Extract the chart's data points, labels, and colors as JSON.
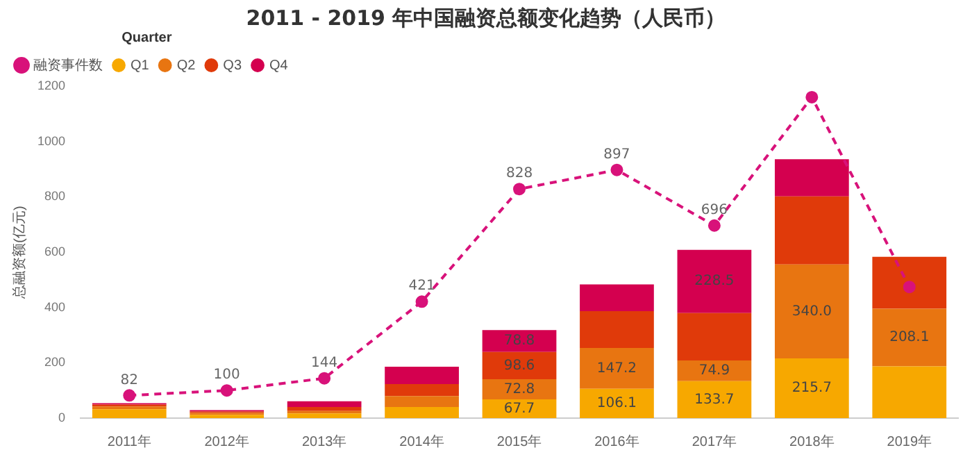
{
  "chart_data": {
    "type": "bar",
    "stacked": true,
    "title": "2011 - 2019 年中国融资总额变化趋势（人民币）",
    "ylabel": "总融资额(亿元)",
    "legend_title": "Quarter",
    "legend": "top left",
    "grid": false,
    "categories": [
      "2011年",
      "2012年",
      "2013年",
      "2014年",
      "2015年",
      "2016年",
      "2017年",
      "2018年",
      "2019年"
    ],
    "ylim": [
      0,
      1200
    ],
    "yticks": [
      0,
      200,
      400,
      600,
      800,
      1000,
      1200
    ],
    "series": [
      {
        "name": "Q1",
        "color": "#f7a800",
        "values": [
          32,
          12,
          17,
          40,
          67.7,
          106.1,
          133.7,
          215.7,
          187
        ],
        "value_labels": [
          null,
          null,
          null,
          null,
          "67.7",
          "106.1",
          "133.7",
          "215.7",
          null
        ]
      },
      {
        "name": "Q2",
        "color": "#e87511",
        "values": [
          10,
          7,
          9,
          40,
          72.8,
          147.2,
          74.9,
          340.0,
          208.1
        ],
        "value_labels": [
          null,
          null,
          null,
          null,
          "72.8",
          "147.2",
          "74.9",
          "340.0",
          "208.1"
        ]
      },
      {
        "name": "Q3",
        "color": "#e03a0a",
        "values": [
          7,
          5,
          14,
          43,
          98.6,
          133,
          171,
          246,
          188
        ],
        "value_labels": [
          null,
          null,
          null,
          null,
          "98.6",
          null,
          null,
          null,
          null
        ]
      },
      {
        "name": "Q4",
        "color": "#d4004f",
        "values": [
          5,
          5,
          21,
          63,
          78.8,
          97,
          228.5,
          134,
          null
        ],
        "value_labels": [
          null,
          null,
          null,
          null,
          "78.8",
          null,
          "228.5",
          null,
          null
        ]
      },
      {
        "name": "融资事件数",
        "type": "line",
        "color": "#d8127a",
        "line_style": "dashed",
        "marker": "circle",
        "values": [
          82,
          100,
          144,
          421,
          828,
          897,
          696,
          1160,
          474
        ],
        "value_labels": [
          "82",
          "100",
          "144",
          "421",
          "828",
          "897",
          "696",
          null,
          null
        ]
      }
    ]
  }
}
